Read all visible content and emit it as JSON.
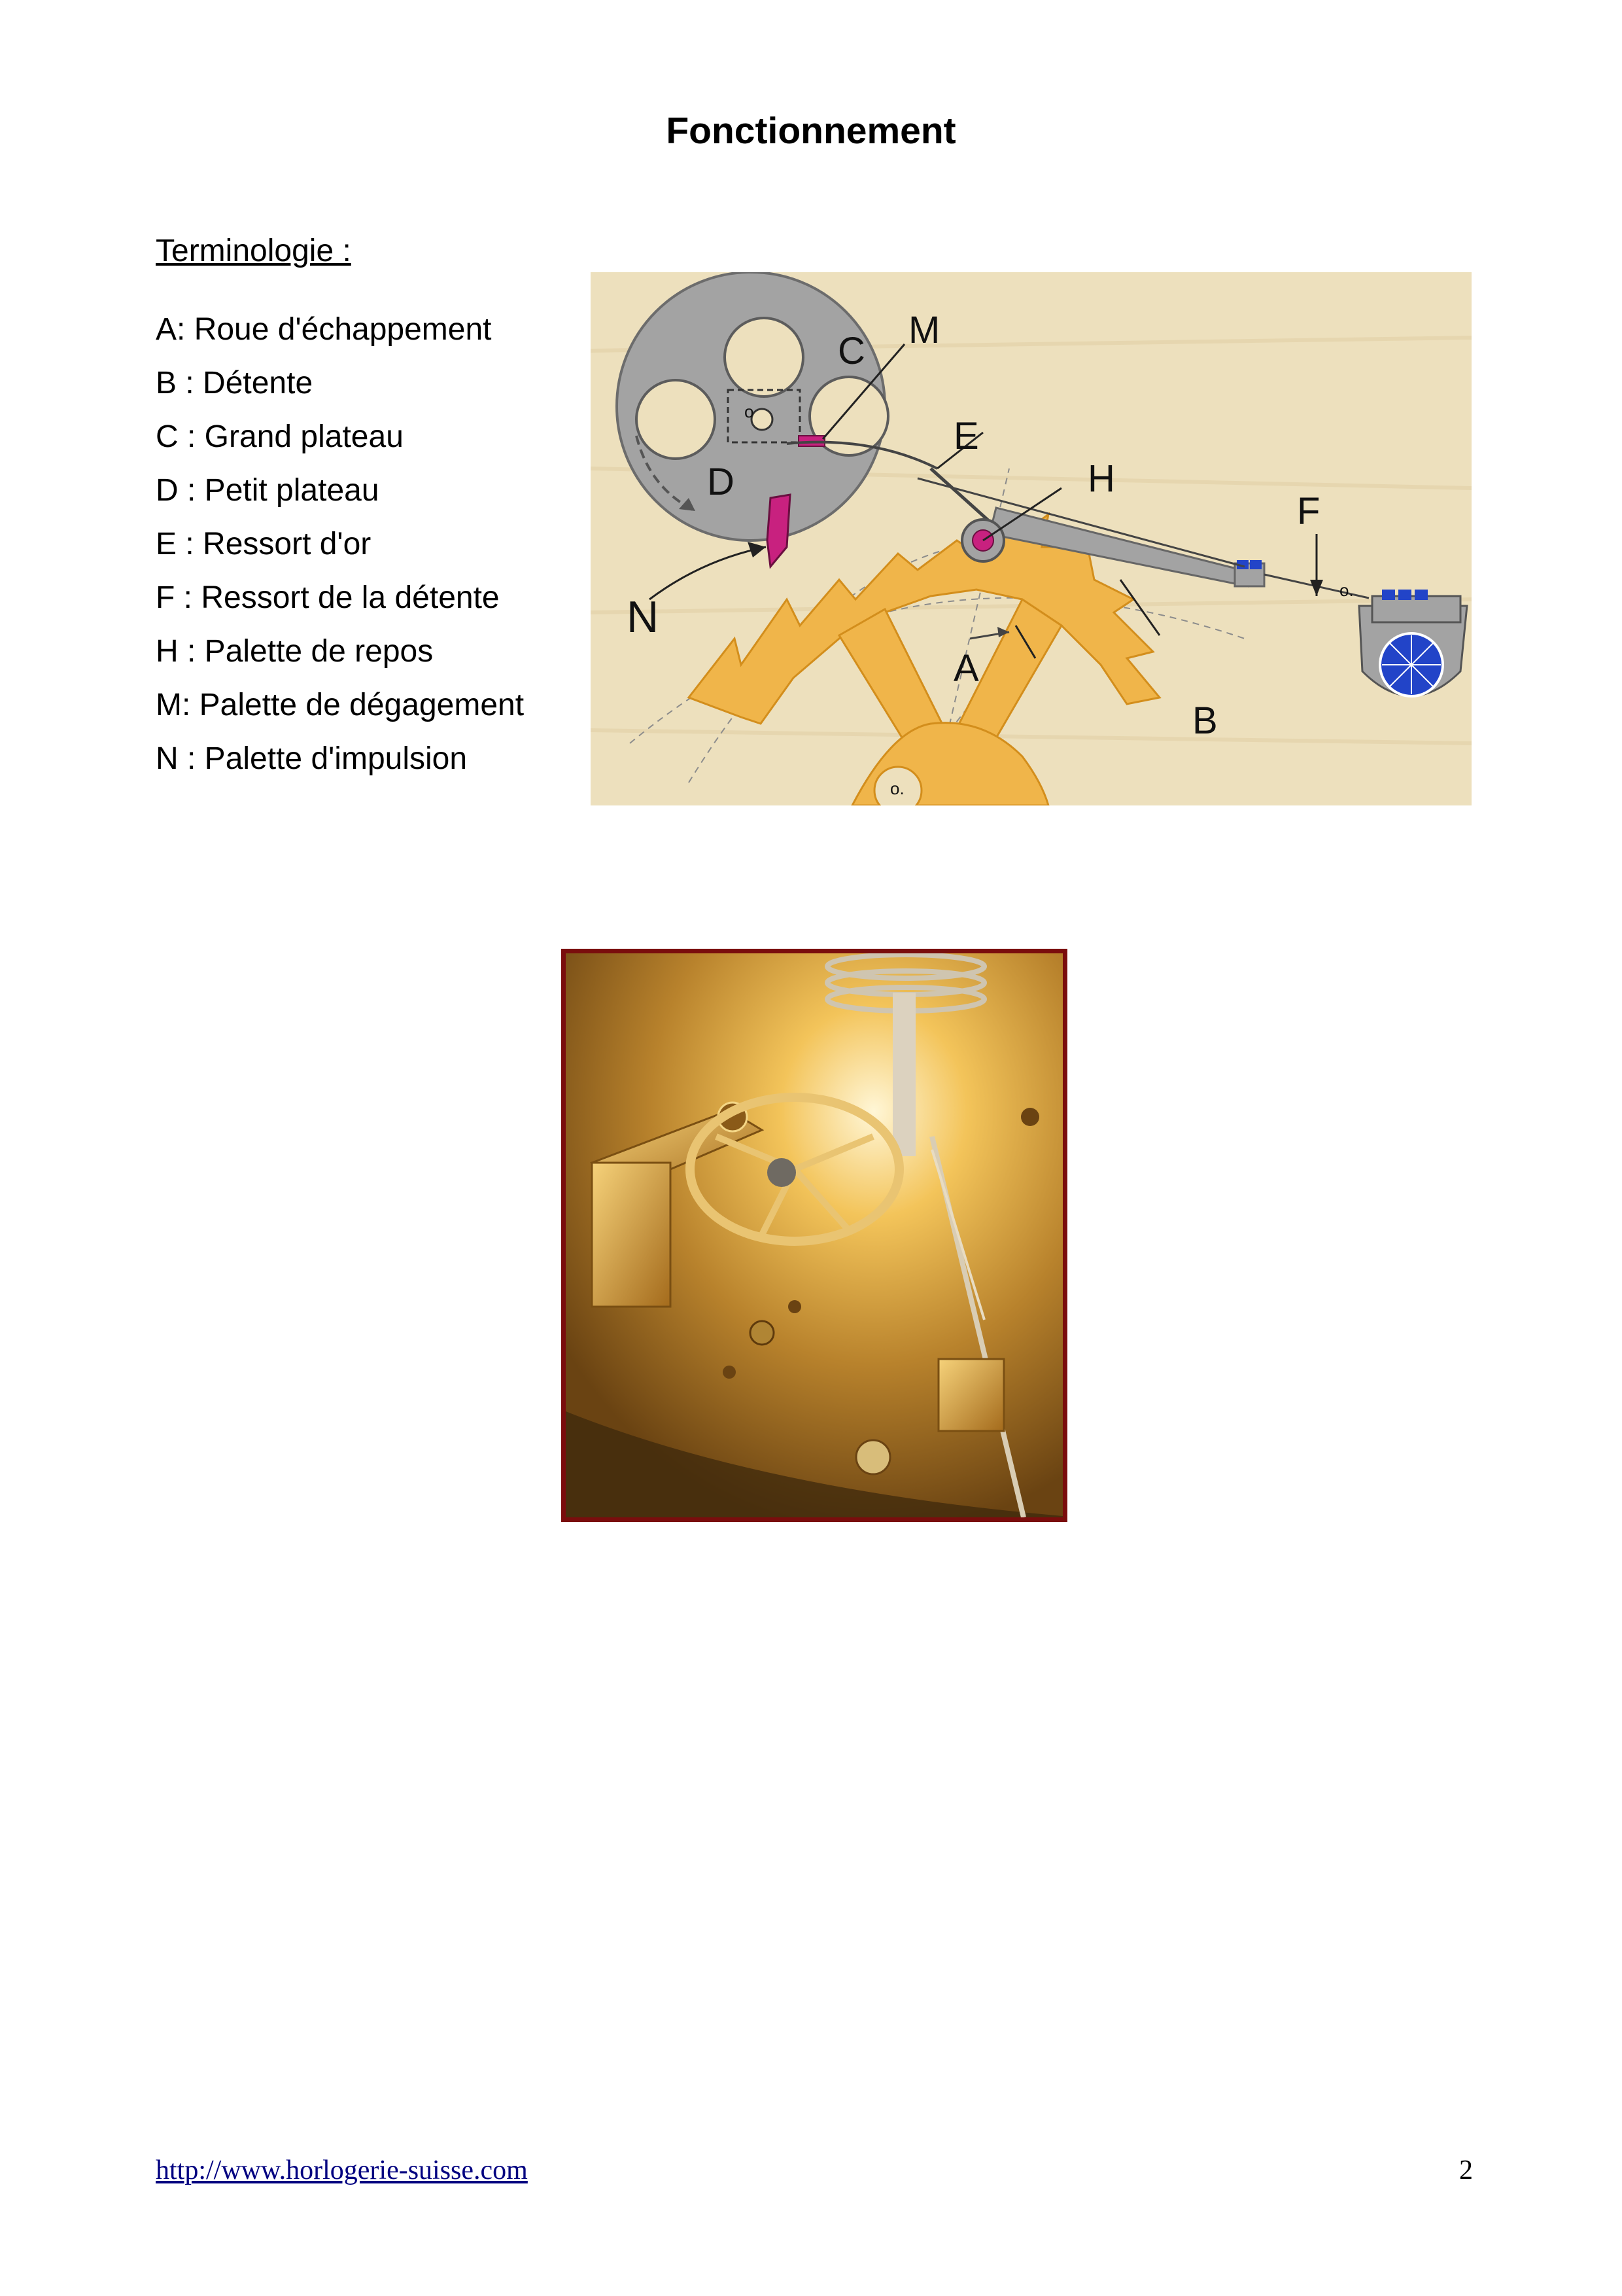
{
  "document": {
    "title": "Fonctionnement",
    "section_title": "Terminologie :",
    "terms": [
      "A:  Roue d'échappement",
      "B : Détente",
      "C : Grand plateau",
      "D : Petit plateau",
      "E : Ressort d'or",
      "F : Ressort de la détente",
      "H : Palette de repos",
      "M: Palette de dégagement",
      "N : Palette d'impulsion"
    ]
  },
  "diagram": {
    "labels": {
      "A": "A",
      "B": "B",
      "C": "C",
      "D": "D",
      "E": "E",
      "F": "F",
      "H": "H",
      "M": "M",
      "N": "N",
      "pivot_marks": [
        "o",
        "o.",
        "o."
      ]
    },
    "colors": {
      "background": "#ede0bd",
      "plate": "#a3a3a3",
      "escape_wheel": "#f0b54a",
      "pallet_magenta": "#c8217f",
      "balance_blue": "#2244c8"
    }
  },
  "photo": {
    "frame_color": "#7a0d0d"
  },
  "footer": {
    "url": "http://www.horlogerie-suisse.com",
    "page_number": "2"
  }
}
